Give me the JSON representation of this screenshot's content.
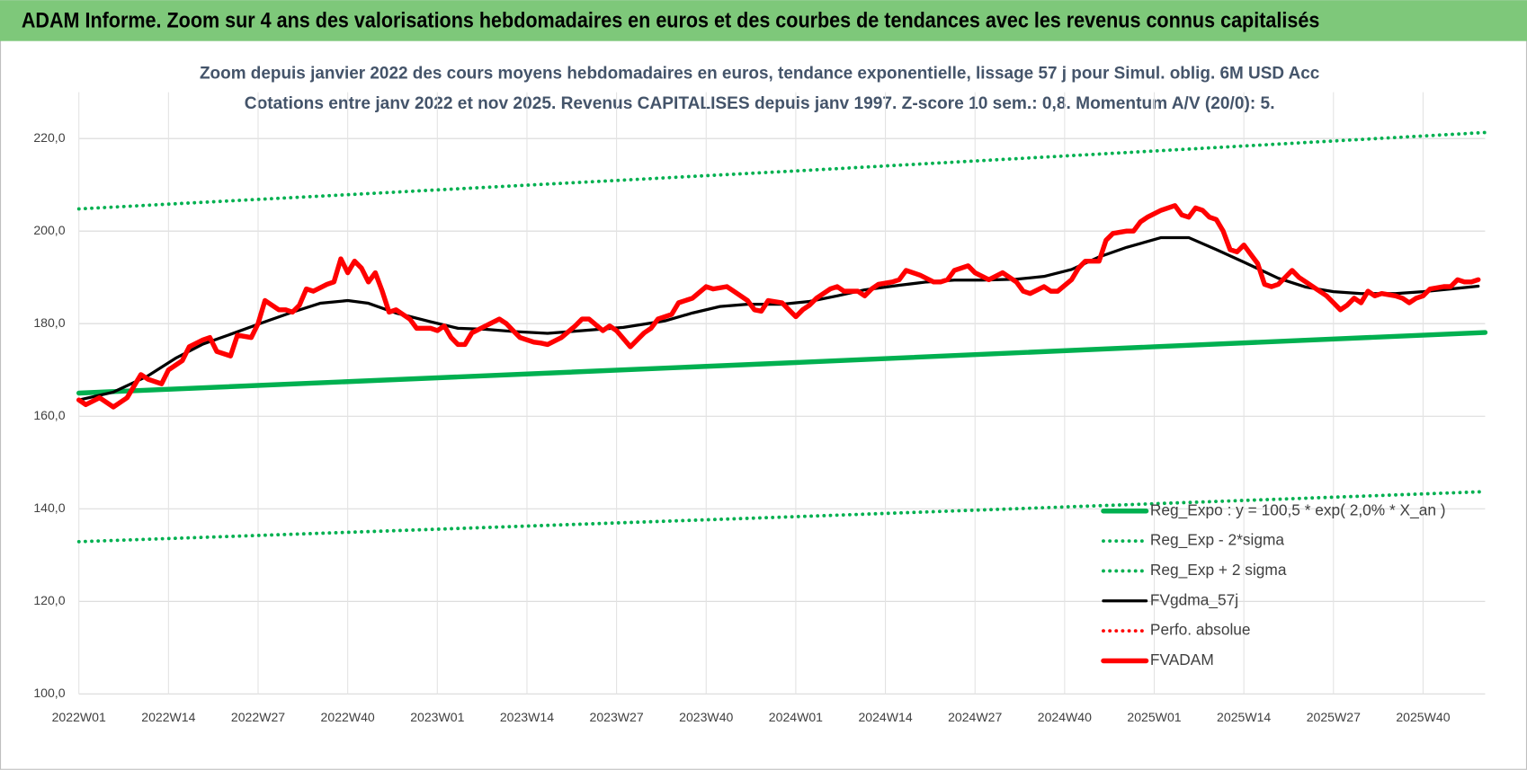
{
  "header": "ADAM Informe. Zoom sur 4 ans des valorisations hebdomadaires en euros et des courbes de tendances avec les revenus connus capitalisés",
  "chart_data": {
    "type": "line",
    "title": "Zoom depuis janvier 2022 des cours moyens hebdomadaires en euros, tendance exponentielle, lissage 57 j pour Simul. oblig. 6M USD Acc",
    "subtitle": "Cotations entre janv 2022 et nov 2025. Revenus CAPITALISES depuis janv 1997. Z-score 10 sem.: 0,8. Momentum A/V (20/0): 5.",
    "xlim": [
      0,
      204
    ],
    "xticks": [
      {
        "value": 0,
        "label": "2022W01"
      },
      {
        "value": 13,
        "label": "2022W14"
      },
      {
        "value": 26,
        "label": "2022W27"
      },
      {
        "value": 39,
        "label": "2022W40"
      },
      {
        "value": 52,
        "label": "2023W01"
      },
      {
        "value": 65,
        "label": "2023W14"
      },
      {
        "value": 78,
        "label": "2023W27"
      },
      {
        "value": 91,
        "label": "2023W40"
      },
      {
        "value": 104,
        "label": "2024W01"
      },
      {
        "value": 117,
        "label": "2024W14"
      },
      {
        "value": 130,
        "label": "2024W27"
      },
      {
        "value": 143,
        "label": "2024W40"
      },
      {
        "value": 156,
        "label": "2025W01"
      },
      {
        "value": 169,
        "label": "2025W14"
      },
      {
        "value": 182,
        "label": "2025W27"
      },
      {
        "value": 195,
        "label": "2025W40"
      }
    ],
    "ylim": [
      100,
      230
    ],
    "yticks": [
      {
        "value": 100,
        "label": "100,0"
      },
      {
        "value": 120,
        "label": "120,0"
      },
      {
        "value": 140,
        "label": "140,0"
      },
      {
        "value": 160,
        "label": "160,0"
      },
      {
        "value": 180,
        "label": "180,0"
      },
      {
        "value": 200,
        "label": "200,0"
      },
      {
        "value": 220,
        "label": "220,0"
      }
    ],
    "grid": true,
    "legend": "lower right",
    "series": [
      {
        "name": "Reg_Expo : y = 100,5 * exp( 2,0% *  X_an )",
        "color": "#00b050",
        "line_style": "solid",
        "line_weight": "thick",
        "x": [
          0,
          52,
          104,
          156,
          204
        ],
        "values": [
          165.0,
          168.3,
          171.6,
          175.0,
          178.1
        ]
      },
      {
        "name": "Reg_Exp - 2*sigma",
        "color": "#00b050",
        "line_style": "dotted",
        "line_weight": "normal",
        "x": [
          0,
          52,
          104,
          156,
          204
        ],
        "values": [
          132.9,
          135.6,
          138.3,
          141.1,
          143.7
        ]
      },
      {
        "name": "Reg_Exp + 2 sigma",
        "color": "#00b050",
        "line_style": "dotted",
        "line_weight": "normal",
        "x": [
          0,
          52,
          104,
          156,
          204
        ],
        "values": [
          204.8,
          208.9,
          213.0,
          217.3,
          221.3
        ]
      },
      {
        "name": "FVgdma_57j",
        "color": "#000000",
        "line_style": "solid",
        "line_weight": "normal",
        "x": [
          0,
          5,
          10,
          14,
          18,
          22,
          27,
          31,
          35,
          39,
          42,
          46,
          51,
          55,
          59,
          63,
          68,
          73,
          79,
          85,
          89,
          93,
          97,
          102,
          106,
          110,
          114,
          119,
          123,
          127,
          131,
          136,
          140,
          144,
          148,
          152,
          157,
          161,
          165,
          169,
          174,
          178,
          182,
          186,
          191,
          195,
          199,
          203
        ],
        "values": [
          163.5,
          165.2,
          168.7,
          172.5,
          175.6,
          177.7,
          180.4,
          182.5,
          184.4,
          185.0,
          184.4,
          182.3,
          180.4,
          179.0,
          178.8,
          178.3,
          177.9,
          178.5,
          179.2,
          180.6,
          182.3,
          183.7,
          184.2,
          184.2,
          184.8,
          186.0,
          187.3,
          188.3,
          189.0,
          189.4,
          189.4,
          189.6,
          190.2,
          191.7,
          194.4,
          196.5,
          198.6,
          198.6,
          196.0,
          193.3,
          189.8,
          187.9,
          186.9,
          186.5,
          186.5,
          186.9,
          187.5,
          188.1
        ]
      },
      {
        "name": "Perfo. absolue",
        "color": "#ff0000",
        "line_style": "dotted",
        "line_weight": "normal",
        "x": [],
        "values": []
      },
      {
        "name": "FVADAM",
        "color": "#ff0000",
        "line_style": "solid",
        "line_weight": "thick",
        "x": [
          0,
          1,
          3,
          5,
          7,
          9,
          10,
          12,
          13,
          15,
          16,
          18,
          19,
          20,
          22,
          23,
          25,
          26,
          27,
          29,
          30,
          31,
          32,
          33,
          34,
          36,
          37,
          38,
          39,
          40,
          41,
          42,
          43,
          44,
          45,
          46,
          48,
          49,
          51,
          52,
          53,
          54,
          55,
          56,
          57,
          59,
          61,
          62,
          63,
          64,
          66,
          67,
          68,
          70,
          72,
          73,
          74,
          76,
          77,
          78,
          80,
          82,
          83,
          84,
          86,
          87,
          89,
          91,
          92,
          94,
          95,
          97,
          98,
          99,
          100,
          102,
          103,
          104,
          105,
          106,
          107,
          109,
          110,
          111,
          113,
          114,
          115,
          116,
          118,
          119,
          120,
          121,
          122,
          124,
          125,
          126,
          127,
          129,
          130,
          132,
          134,
          136,
          137,
          138,
          140,
          141,
          142,
          144,
          145,
          146,
          148,
          149,
          150,
          152,
          153,
          154,
          155,
          157,
          159,
          160,
          161,
          162,
          163,
          164,
          165,
          166,
          167,
          168,
          169,
          170,
          171,
          172,
          173,
          174,
          175,
          176,
          177,
          178,
          179,
          180,
          181,
          182,
          183,
          184,
          185,
          186,
          187,
          188,
          189,
          191,
          192,
          193,
          194,
          195,
          196,
          198,
          199,
          200,
          201,
          202,
          203
        ],
        "values": [
          163.5,
          162.5,
          164,
          162,
          164,
          169,
          168,
          167,
          170,
          172,
          175,
          176.5,
          177,
          174,
          173,
          177.5,
          177,
          180,
          185,
          183,
          183,
          182.5,
          184,
          187.5,
          187,
          188.5,
          189,
          194,
          191,
          193.5,
          192,
          189,
          191,
          187,
          182.5,
          183,
          181,
          179,
          179,
          178.5,
          179.5,
          177,
          175.5,
          175.5,
          178,
          179.5,
          181,
          180,
          178.5,
          177,
          176,
          175.8,
          175.5,
          177,
          179.5,
          181,
          181,
          178.5,
          179.5,
          178.5,
          175,
          178,
          179,
          181,
          182,
          184.5,
          185.5,
          188,
          187.5,
          188,
          187,
          185,
          183,
          182.7,
          185,
          184.5,
          183,
          181.5,
          183,
          184,
          185.5,
          187.5,
          188,
          187,
          187,
          186,
          187.5,
          188.5,
          189,
          189.5,
          191.5,
          191,
          190.5,
          189,
          189,
          189.5,
          191.5,
          192.5,
          191,
          189.5,
          191,
          189,
          187,
          186.5,
          188,
          187,
          187,
          189.5,
          192,
          193.5,
          193.5,
          198,
          199.5,
          200,
          200,
          202,
          203,
          204.5,
          205.5,
          203.5,
          203,
          205,
          204.5,
          203,
          202.5,
          200,
          196,
          195.5,
          197,
          195,
          193,
          188.5,
          188,
          188.5,
          190,
          191.5,
          190,
          189,
          188,
          187,
          186,
          184.5,
          183,
          184,
          185.5,
          184.5,
          187,
          186,
          186.5,
          186,
          185.5,
          184.5,
          185.5,
          186,
          187.5,
          188,
          188,
          189.5,
          189,
          189,
          189.5
        ]
      }
    ]
  }
}
